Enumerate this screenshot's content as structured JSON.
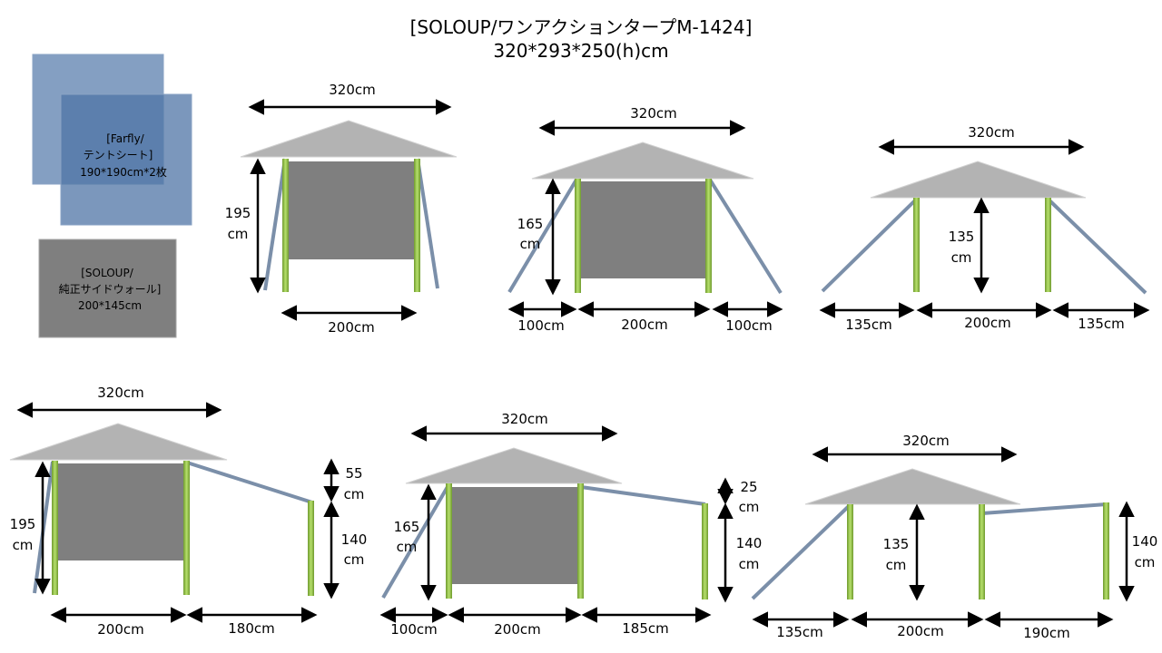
{
  "title_line1": "[SOLOUP/ワンアクションタープM-1424]",
  "title_line2": "320*293*250(h)cm",
  "legend": {
    "sheet": {
      "line1": "[Farfly/",
      "line2": "テントシート]",
      "line3": "190*190cm*2枚"
    },
    "wall": {
      "line1": "[SOLOUP/",
      "line2": "純正サイドウォール]",
      "line3": "200*145cm"
    }
  },
  "colors": {
    "tarp": "#b3b3b3",
    "sheet": "#5b7fae",
    "wall": "#7f7f7f",
    "pole": "#92c44a",
    "brace": "#7b8fa9"
  },
  "configs": [
    {
      "width": "320cm",
      "height_line1": "195",
      "height_line2": "cm",
      "bottom": [
        "200cm"
      ]
    },
    {
      "width": "320cm",
      "height_line1": "165",
      "height_line2": "cm",
      "bottom": [
        "100cm",
        "200cm",
        "100cm"
      ]
    },
    {
      "width": "320cm",
      "height_line1": "135",
      "height_line2": "cm",
      "bottom": [
        "135cm",
        "200cm",
        "135cm"
      ]
    },
    {
      "width": "320cm",
      "height_line1": "195",
      "height_line2": "cm",
      "ext_top_line1": "55",
      "ext_top_line2": "cm",
      "ext_line1": "140",
      "ext_line2": "cm",
      "bottom": [
        "200cm",
        "180cm"
      ]
    },
    {
      "width": "320cm",
      "height_line1": "165",
      "height_line2": "cm",
      "ext_top_line1": "25",
      "ext_top_line2": "cm",
      "ext_line1": "140",
      "ext_line2": "cm",
      "bottom": [
        "100cm",
        "200cm",
        "185cm"
      ]
    },
    {
      "width": "320cm",
      "height_line1": "135",
      "height_line2": "cm",
      "ext_line1": "140",
      "ext_line2": "cm",
      "bottom": [
        "135cm",
        "200cm",
        "190cm"
      ]
    }
  ]
}
